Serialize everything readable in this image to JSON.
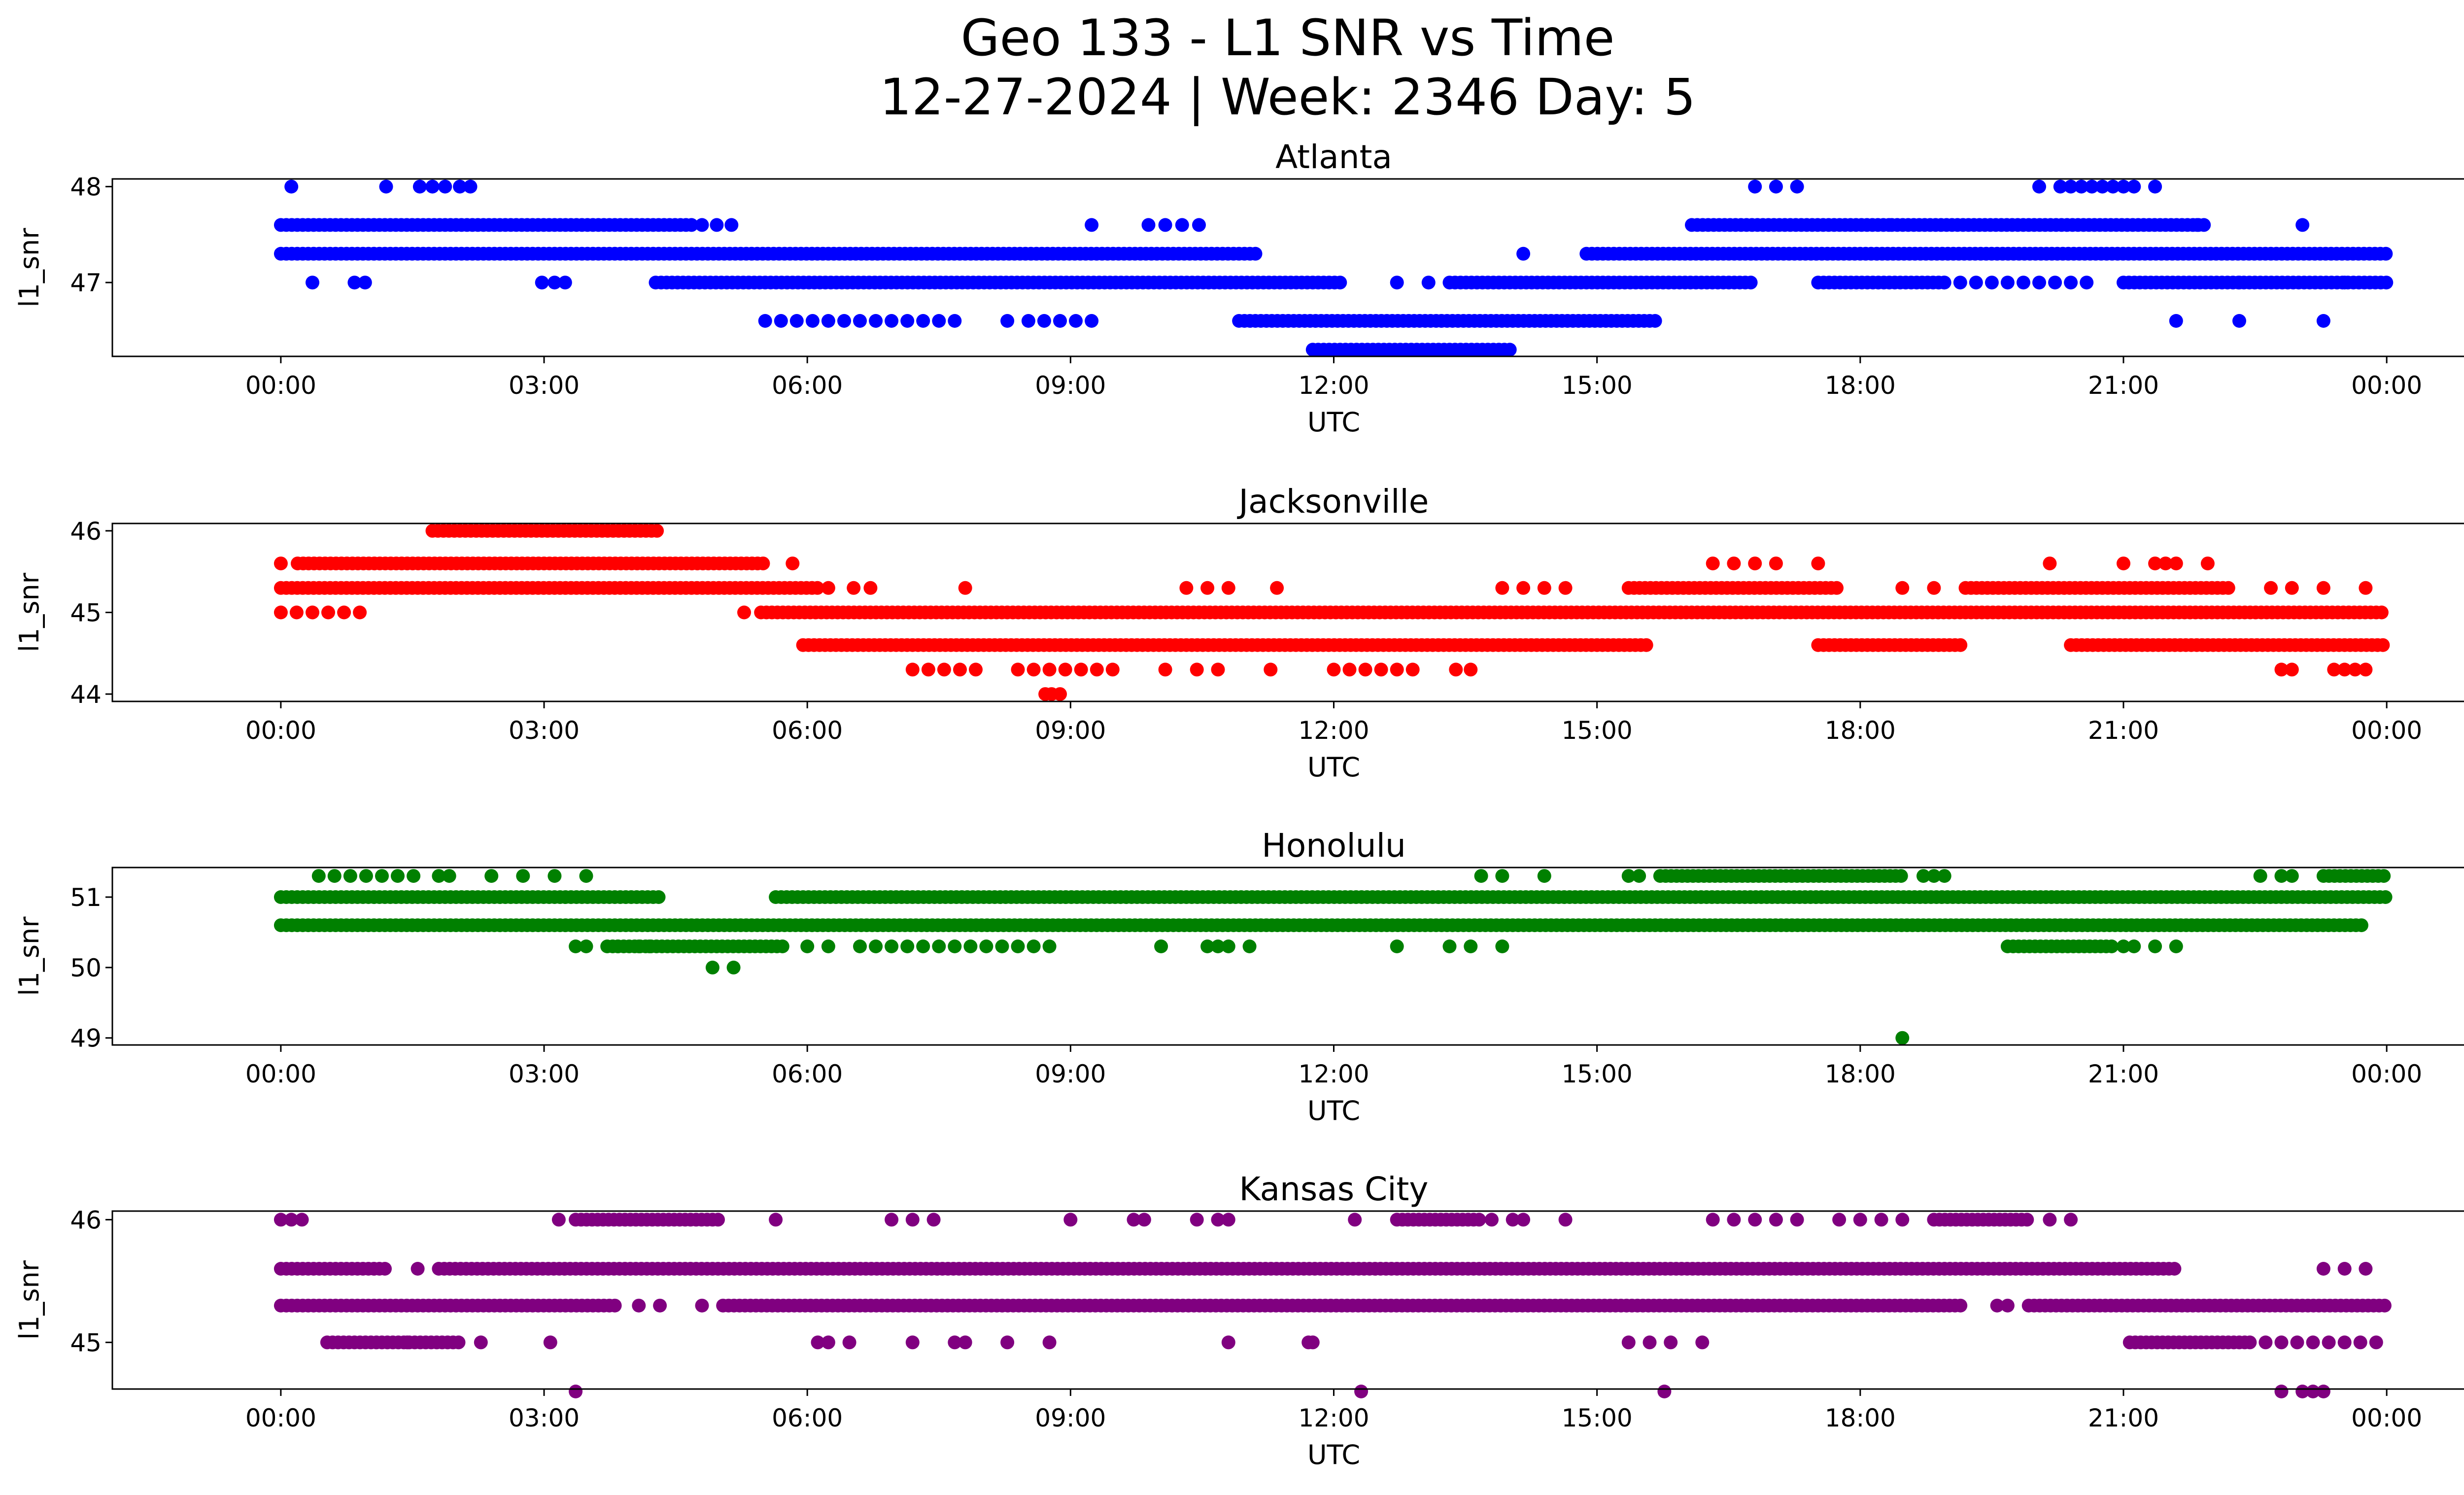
{
  "figure": {
    "title_line1": "Geo 133 - L1 SNR vs Time",
    "title_line2": "12-27-2024 | Week: 2346 Day: 5"
  },
  "chart_data": [
    {
      "type": "scatter",
      "title": "Atlanta",
      "xlabel": "UTC",
      "ylabel": "l1_snr",
      "color": "#0000ff",
      "xlim": [
        -0.08,
        1.08
      ],
      "ylim": [
        46.23,
        48.08
      ],
      "xticks": [
        0,
        0.125,
        0.25,
        0.375,
        0.5,
        0.625,
        0.75,
        0.875,
        1
      ],
      "xticklabels": [
        "00:00",
        "03:00",
        "06:00",
        "09:00",
        "12:00",
        "15:00",
        "18:00",
        "21:00",
        "00:00"
      ],
      "yticks": [
        47,
        48
      ],
      "segments": [
        {
          "y": 47.6,
          "from": 0.0,
          "to": 0.195,
          "mode": "dense"
        },
        {
          "y": 47.3,
          "from": 0.0,
          "to": 0.465,
          "mode": "dense"
        },
        {
          "y": 47.0,
          "from": 0.178,
          "to": 0.505,
          "mode": "dense"
        },
        {
          "y": 46.6,
          "from": 0.23,
          "to": 0.32,
          "mode": "sparse"
        },
        {
          "y": 46.6,
          "from": 0.355,
          "to": 0.385,
          "mode": "sparse"
        },
        {
          "y": 46.6,
          "from": 0.455,
          "to": 0.655,
          "mode": "dense"
        },
        {
          "y": 46.3,
          "from": 0.49,
          "to": 0.585,
          "mode": "dense"
        },
        {
          "y": 47.0,
          "from": 0.555,
          "to": 0.7,
          "mode": "dense"
        },
        {
          "y": 47.3,
          "from": 0.62,
          "to": 1.0,
          "mode": "dense"
        },
        {
          "y": 47.6,
          "from": 0.67,
          "to": 0.765,
          "mode": "dense"
        },
        {
          "y": 47.6,
          "from": 0.765,
          "to": 0.915,
          "mode": "dense"
        },
        {
          "y": 47.0,
          "from": 0.73,
          "to": 0.79,
          "mode": "dense"
        },
        {
          "y": 47.0,
          "from": 0.875,
          "to": 1.0,
          "mode": "dense"
        },
        {
          "y": 47.0,
          "from": 0.79,
          "to": 0.86,
          "mode": "sparse"
        }
      ],
      "points": [
        [
          0.005,
          48.0
        ],
        [
          0.05,
          48.0
        ],
        [
          0.066,
          48.0
        ],
        [
          0.072,
          48.0
        ],
        [
          0.078,
          48.0
        ],
        [
          0.085,
          48.0
        ],
        [
          0.09,
          48.0
        ],
        [
          0.7,
          48.0
        ],
        [
          0.71,
          48.0
        ],
        [
          0.72,
          48.0
        ],
        [
          0.835,
          48.0
        ],
        [
          0.845,
          48.0
        ],
        [
          0.85,
          48.0
        ],
        [
          0.855,
          48.0
        ],
        [
          0.86,
          48.0
        ],
        [
          0.865,
          48.0
        ],
        [
          0.87,
          48.0
        ],
        [
          0.875,
          48.0
        ],
        [
          0.88,
          48.0
        ],
        [
          0.89,
          48.0
        ],
        [
          0.2,
          47.6
        ],
        [
          0.207,
          47.6
        ],
        [
          0.214,
          47.6
        ],
        [
          0.385,
          47.6
        ],
        [
          0.412,
          47.6
        ],
        [
          0.42,
          47.6
        ],
        [
          0.428,
          47.6
        ],
        [
          0.436,
          47.6
        ],
        [
          0.91,
          47.6
        ],
        [
          0.96,
          47.6
        ],
        [
          0.015,
          47.0
        ],
        [
          0.035,
          47.0
        ],
        [
          0.04,
          47.0
        ],
        [
          0.124,
          47.0
        ],
        [
          0.13,
          47.0
        ],
        [
          0.135,
          47.0
        ],
        [
          0.53,
          47.0
        ],
        [
          0.545,
          47.0
        ],
        [
          0.93,
          47.0
        ],
        [
          0.98,
          47.0
        ],
        [
          0.59,
          47.3
        ],
        [
          0.345,
          46.6
        ],
        [
          0.9,
          46.6
        ],
        [
          0.93,
          46.6
        ],
        [
          0.97,
          46.6
        ]
      ]
    },
    {
      "type": "scatter",
      "title": "Jacksonville",
      "xlabel": "UTC",
      "ylabel": "l1_snr",
      "color": "#ff0000",
      "xlim": [
        -0.08,
        1.08
      ],
      "ylim": [
        43.91,
        46.09
      ],
      "xticks": [
        0,
        0.125,
        0.25,
        0.375,
        0.5,
        0.625,
        0.75,
        0.875,
        1
      ],
      "xticklabels": [
        "00:00",
        "03:00",
        "06:00",
        "09:00",
        "12:00",
        "15:00",
        "18:00",
        "21:00",
        "00:00"
      ],
      "yticks": [
        44,
        45,
        46
      ],
      "segments": [
        {
          "y": 46.0,
          "from": 0.072,
          "to": 0.18,
          "mode": "dense"
        },
        {
          "y": 45.6,
          "from": 0.008,
          "to": 0.23,
          "mode": "dense"
        },
        {
          "y": 45.3,
          "from": 0.0,
          "to": 0.255,
          "mode": "dense"
        },
        {
          "y": 45.0,
          "from": 0.0,
          "to": 0.04,
          "mode": "sparse"
        },
        {
          "y": 45.0,
          "from": 0.228,
          "to": 1.0,
          "mode": "dense"
        },
        {
          "y": 44.6,
          "from": 0.248,
          "to": 0.65,
          "mode": "dense"
        },
        {
          "y": 44.6,
          "from": 0.73,
          "to": 0.8,
          "mode": "dense"
        },
        {
          "y": 44.6,
          "from": 0.85,
          "to": 1.0,
          "mode": "dense"
        },
        {
          "y": 45.3,
          "from": 0.64,
          "to": 0.74,
          "mode": "dense"
        },
        {
          "y": 45.3,
          "from": 0.8,
          "to": 0.925,
          "mode": "dense"
        },
        {
          "y": 44.3,
          "from": 0.3,
          "to": 0.33,
          "mode": "sparse"
        },
        {
          "y": 44.3,
          "from": 0.35,
          "to": 0.4,
          "mode": "sparse"
        },
        {
          "y": 44.3,
          "from": 0.5,
          "to": 0.54,
          "mode": "sparse"
        }
      ],
      "points": [
        [
          0.0,
          45.6
        ],
        [
          0.243,
          45.6
        ],
        [
          0.325,
          45.3
        ],
        [
          0.26,
          45.3
        ],
        [
          0.272,
          45.3
        ],
        [
          0.28,
          45.3
        ],
        [
          0.43,
          45.3
        ],
        [
          0.44,
          45.3
        ],
        [
          0.45,
          45.3
        ],
        [
          0.473,
          45.3
        ],
        [
          0.58,
          45.3
        ],
        [
          0.59,
          45.3
        ],
        [
          0.6,
          45.3
        ],
        [
          0.61,
          45.3
        ],
        [
          0.77,
          45.3
        ],
        [
          0.785,
          45.3
        ],
        [
          0.945,
          45.3
        ],
        [
          0.955,
          45.3
        ],
        [
          0.97,
          45.3
        ],
        [
          0.99,
          45.3
        ],
        [
          0.22,
          45.0
        ],
        [
          0.68,
          45.6
        ],
        [
          0.69,
          45.6
        ],
        [
          0.7,
          45.6
        ],
        [
          0.71,
          45.6
        ],
        [
          0.73,
          45.6
        ],
        [
          0.84,
          45.6
        ],
        [
          0.875,
          45.6
        ],
        [
          0.89,
          45.6
        ],
        [
          0.895,
          45.6
        ],
        [
          0.9,
          45.6
        ],
        [
          0.915,
          45.6
        ],
        [
          0.42,
          44.3
        ],
        [
          0.435,
          44.3
        ],
        [
          0.445,
          44.3
        ],
        [
          0.47,
          44.3
        ],
        [
          0.558,
          44.3
        ],
        [
          0.565,
          44.3
        ],
        [
          0.95,
          44.3
        ],
        [
          0.955,
          44.3
        ],
        [
          0.975,
          44.3
        ],
        [
          0.98,
          44.3
        ],
        [
          0.985,
          44.3
        ],
        [
          0.99,
          44.3
        ],
        [
          0.363,
          44.0
        ],
        [
          0.366,
          44.0
        ],
        [
          0.37,
          44.0
        ]
      ]
    },
    {
      "type": "scatter",
      "title": "Honolulu",
      "xlabel": "UTC",
      "ylabel": "l1_snr",
      "color": "#008000",
      "xlim": [
        -0.08,
        1.08
      ],
      "ylim": [
        48.9,
        51.42
      ],
      "xticks": [
        0,
        0.125,
        0.25,
        0.375,
        0.5,
        0.625,
        0.75,
        0.875,
        1
      ],
      "xticklabels": [
        "00:00",
        "03:00",
        "06:00",
        "09:00",
        "12:00",
        "15:00",
        "18:00",
        "21:00",
        "00:00"
      ],
      "yticks": [
        49,
        50,
        51
      ],
      "segments": [
        {
          "y": 51.0,
          "from": 0.0,
          "to": 0.18,
          "mode": "dense"
        },
        {
          "y": 51.0,
          "from": 0.235,
          "to": 1.0,
          "mode": "dense"
        },
        {
          "y": 50.6,
          "from": 0.0,
          "to": 0.99,
          "mode": "dense"
        },
        {
          "y": 51.3,
          "from": 0.018,
          "to": 0.07,
          "mode": "sparse"
        },
        {
          "y": 51.3,
          "from": 0.655,
          "to": 0.77,
          "mode": "dense"
        },
        {
          "y": 51.3,
          "from": 0.97,
          "to": 1.0,
          "mode": "dense"
        },
        {
          "y": 50.3,
          "from": 0.155,
          "to": 0.24,
          "mode": "dense"
        },
        {
          "y": 50.3,
          "from": 0.275,
          "to": 0.365,
          "mode": "sparse"
        },
        {
          "y": 50.3,
          "from": 0.82,
          "to": 0.87,
          "mode": "dense"
        }
      ],
      "points": [
        [
          0.075,
          51.3
        ],
        [
          0.08,
          51.3
        ],
        [
          0.1,
          51.3
        ],
        [
          0.115,
          51.3
        ],
        [
          0.13,
          51.3
        ],
        [
          0.145,
          51.3
        ],
        [
          0.58,
          51.3
        ],
        [
          0.6,
          51.3
        ],
        [
          0.78,
          51.3
        ],
        [
          0.785,
          51.3
        ],
        [
          0.79,
          51.3
        ],
        [
          0.94,
          51.3
        ],
        [
          0.95,
          51.3
        ],
        [
          0.955,
          51.3
        ],
        [
          0.57,
          51.3
        ],
        [
          0.64,
          51.3
        ],
        [
          0.645,
          51.3
        ],
        [
          0.14,
          50.3
        ],
        [
          0.145,
          50.3
        ],
        [
          0.16,
          50.3
        ],
        [
          0.17,
          50.3
        ],
        [
          0.175,
          50.3
        ],
        [
          0.25,
          50.3
        ],
        [
          0.26,
          50.3
        ],
        [
          0.418,
          50.3
        ],
        [
          0.44,
          50.3
        ],
        [
          0.445,
          50.3
        ],
        [
          0.45,
          50.3
        ],
        [
          0.46,
          50.3
        ],
        [
          0.53,
          50.3
        ],
        [
          0.555,
          50.3
        ],
        [
          0.565,
          50.3
        ],
        [
          0.58,
          50.3
        ],
        [
          0.875,
          50.3
        ],
        [
          0.88,
          50.3
        ],
        [
          0.89,
          50.3
        ],
        [
          0.9,
          50.3
        ],
        [
          0.215,
          50.0
        ],
        [
          0.205,
          50.0
        ],
        [
          0.77,
          49.0
        ]
      ]
    },
    {
      "type": "scatter",
      "title": "Kansas City",
      "xlabel": "UTC",
      "ylabel": "l1_snr",
      "color": "#800080",
      "xlim": [
        -0.08,
        1.08
      ],
      "ylim": [
        44.62,
        46.07
      ],
      "xticks": [
        0,
        0.125,
        0.25,
        0.375,
        0.5,
        0.625,
        0.75,
        0.875,
        1
      ],
      "xticklabels": [
        "00:00",
        "03:00",
        "06:00",
        "09:00",
        "12:00",
        "15:00",
        "18:00",
        "21:00",
        "00:00"
      ],
      "yticks": [
        45,
        46
      ],
      "segments": [
        {
          "y": 45.6,
          "from": 0.0,
          "to": 0.05,
          "mode": "dense"
        },
        {
          "y": 45.6,
          "from": 0.075,
          "to": 0.9,
          "mode": "dense"
        },
        {
          "y": 45.3,
          "from": 0.0,
          "to": 0.16,
          "mode": "dense"
        },
        {
          "y": 45.3,
          "from": 0.21,
          "to": 0.6,
          "mode": "dense"
        },
        {
          "y": 45.3,
          "from": 0.6,
          "to": 0.8,
          "mode": "dense"
        },
        {
          "y": 45.3,
          "from": 0.83,
          "to": 1.0,
          "mode": "dense"
        },
        {
          "y": 45.0,
          "from": 0.022,
          "to": 0.085,
          "mode": "dense"
        },
        {
          "y": 45.0,
          "from": 0.878,
          "to": 0.935,
          "mode": "dense"
        },
        {
          "y": 45.0,
          "from": 0.935,
          "to": 0.995,
          "mode": "sparse"
        },
        {
          "y": 46.0,
          "from": 0.14,
          "to": 0.21,
          "mode": "dense"
        },
        {
          "y": 46.0,
          "from": 0.53,
          "to": 0.57,
          "mode": "dense"
        },
        {
          "y": 46.0,
          "from": 0.785,
          "to": 0.83,
          "mode": "dense"
        }
      ],
      "points": [
        [
          0.0,
          46.0
        ],
        [
          0.005,
          46.0
        ],
        [
          0.01,
          46.0
        ],
        [
          0.132,
          46.0
        ],
        [
          0.235,
          46.0
        ],
        [
          0.29,
          46.0
        ],
        [
          0.3,
          46.0
        ],
        [
          0.31,
          46.0
        ],
        [
          0.375,
          46.0
        ],
        [
          0.405,
          46.0
        ],
        [
          0.41,
          46.0
        ],
        [
          0.435,
          46.0
        ],
        [
          0.445,
          46.0
        ],
        [
          0.45,
          46.0
        ],
        [
          0.51,
          46.0
        ],
        [
          0.575,
          46.0
        ],
        [
          0.585,
          46.0
        ],
        [
          0.59,
          46.0
        ],
        [
          0.61,
          46.0
        ],
        [
          0.68,
          46.0
        ],
        [
          0.69,
          46.0
        ],
        [
          0.7,
          46.0
        ],
        [
          0.71,
          46.0
        ],
        [
          0.72,
          46.0
        ],
        [
          0.74,
          46.0
        ],
        [
          0.75,
          46.0
        ],
        [
          0.76,
          46.0
        ],
        [
          0.77,
          46.0
        ],
        [
          0.84,
          46.0
        ],
        [
          0.85,
          46.0
        ],
        [
          0.065,
          45.6
        ],
        [
          0.97,
          45.6
        ],
        [
          0.98,
          45.6
        ],
        [
          0.99,
          45.6
        ],
        [
          0.17,
          45.3
        ],
        [
          0.18,
          45.3
        ],
        [
          0.2,
          45.3
        ],
        [
          0.815,
          45.3
        ],
        [
          0.82,
          45.3
        ],
        [
          0.06,
          45.0
        ],
        [
          0.095,
          45.0
        ],
        [
          0.128,
          45.0
        ],
        [
          0.255,
          45.0
        ],
        [
          0.26,
          45.0
        ],
        [
          0.27,
          45.0
        ],
        [
          0.3,
          45.0
        ],
        [
          0.32,
          45.0
        ],
        [
          0.325,
          45.0
        ],
        [
          0.345,
          45.0
        ],
        [
          0.365,
          45.0
        ],
        [
          0.45,
          45.0
        ],
        [
          0.488,
          45.0
        ],
        [
          0.49,
          45.0
        ],
        [
          0.64,
          45.0
        ],
        [
          0.65,
          45.0
        ],
        [
          0.66,
          45.0
        ],
        [
          0.675,
          45.0
        ],
        [
          0.14,
          44.6
        ],
        [
          0.513,
          44.6
        ],
        [
          0.657,
          44.6
        ],
        [
          0.95,
          44.6
        ],
        [
          0.96,
          44.6
        ],
        [
          0.965,
          44.6
        ],
        [
          0.97,
          44.6
        ]
      ]
    }
  ]
}
